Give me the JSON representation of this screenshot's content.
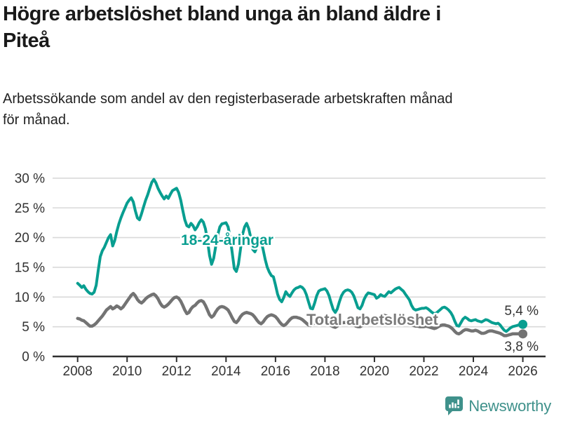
{
  "title": {
    "line1": "Högre arbetslöshet bland unga än bland äldre i",
    "line2": "Piteå"
  },
  "subtitle": {
    "line1": "Arbetssökande som andel av den registerbaserade arbetskraften månad",
    "line2": "för månad."
  },
  "colors": {
    "youth": "#089e90",
    "total": "#737373",
    "axis": "#2f2f2f",
    "grid": "#d9d9d9",
    "tick_label": "#333333",
    "value_label": "#333333",
    "brand": "#3f918b",
    "background": "#ffffff"
  },
  "chart_data": {
    "type": "line",
    "title": "Högre arbetslöshet bland unga än bland äldre i Piteå",
    "xlabel": "",
    "ylabel": "Arbetssökande som andel av den registerbaserade arbetskraften",
    "unit": "%",
    "x_start": 2008,
    "points_per_year": 12,
    "x_ticks": [
      2008,
      2010,
      2012,
      2014,
      2016,
      2018,
      2020,
      2022,
      2024,
      2026
    ],
    "y_ticks": [
      0,
      5,
      10,
      15,
      20,
      25,
      30
    ],
    "y_tick_labels": [
      "0 %",
      "5 %",
      "10 %",
      "15 %",
      "20 %",
      "25 %",
      "30 %"
    ],
    "ylim": [
      0,
      30
    ],
    "grid": true,
    "legend_position": "inline-labels",
    "series": [
      {
        "name": "18-24-åringar",
        "label": "18-24-åringar",
        "color": "#089e90",
        "end_label": "5,4 %",
        "values": [
          12.3,
          12.0,
          11.6,
          11.9,
          11.3,
          10.9,
          10.6,
          10.5,
          10.8,
          12.0,
          14.5,
          16.8,
          17.8,
          18.4,
          19.2,
          20.0,
          20.5,
          18.6,
          19.5,
          21.0,
          22.3,
          23.3,
          24.2,
          25.0,
          25.8,
          26.3,
          26.7,
          26.0,
          24.5,
          23.3,
          23.0,
          24.0,
          25.2,
          26.3,
          27.2,
          28.3,
          29.3,
          29.8,
          29.2,
          28.3,
          27.6,
          27.0,
          26.5,
          27.0,
          26.6,
          27.3,
          27.9,
          28.1,
          28.3,
          27.6,
          26.3,
          24.6,
          23.0,
          22.0,
          21.8,
          22.4,
          22.0,
          21.3,
          21.8,
          22.5,
          23.0,
          22.6,
          21.5,
          19.5,
          17.0,
          15.5,
          16.5,
          18.5,
          20.5,
          21.8,
          22.3,
          22.4,
          22.5,
          21.8,
          20.0,
          17.5,
          14.8,
          14.3,
          15.5,
          18.0,
          20.5,
          21.8,
          22.4,
          21.5,
          20.0,
          18.0,
          17.6,
          18.4,
          19.2,
          19.4,
          18.0,
          16.3,
          15.0,
          14.2,
          13.6,
          13.4,
          12.0,
          10.5,
          9.6,
          9.2,
          9.9,
          10.9,
          10.4,
          10.1,
          10.7,
          11.2,
          11.5,
          11.6,
          11.8,
          11.6,
          11.2,
          10.4,
          9.2,
          8.1,
          8.0,
          9.0,
          10.2,
          11.0,
          11.2,
          11.3,
          11.4,
          11.0,
          10.2,
          9.0,
          7.9,
          7.4,
          8.0,
          9.2,
          10.2,
          10.8,
          11.1,
          11.2,
          11.1,
          10.8,
          10.2,
          9.2,
          8.2,
          8.0,
          8.6,
          9.6,
          10.3,
          10.7,
          10.6,
          10.5,
          10.4,
          9.8,
          10.0,
          10.4,
          10.2,
          10.1,
          10.5,
          10.9,
          10.7,
          11.0,
          11.3,
          11.5,
          11.6,
          11.3,
          11.0,
          10.5,
          10.0,
          9.5,
          8.6,
          8.0,
          7.8,
          7.9,
          8.0,
          8.1,
          8.1,
          8.2,
          8.0,
          7.7,
          7.4,
          7.2,
          7.3,
          7.6,
          7.9,
          8.2,
          8.3,
          8.1,
          7.8,
          7.4,
          6.8,
          5.9,
          5.2,
          5.1,
          5.7,
          6.3,
          6.6,
          6.4,
          6.1,
          6.0,
          6.1,
          6.2,
          6.0,
          5.9,
          5.8,
          6.0,
          6.2,
          6.1,
          5.9,
          5.7,
          5.6,
          5.5,
          5.6,
          5.3,
          4.8,
          4.4,
          4.2,
          4.5,
          4.8,
          5.0,
          5.1,
          5.2,
          5.3,
          5.4,
          5.4
        ]
      },
      {
        "name": "Total arbetslöshet",
        "label": "Total arbetslöshet",
        "color": "#737373",
        "end_label": "3,8 %",
        "values": [
          6.4,
          6.3,
          6.1,
          6.0,
          5.7,
          5.4,
          5.1,
          5.1,
          5.3,
          5.6,
          6.0,
          6.4,
          6.8,
          7.3,
          7.8,
          8.1,
          8.4,
          8.0,
          8.2,
          8.5,
          8.3,
          8.0,
          8.3,
          8.8,
          9.3,
          9.8,
          10.3,
          10.6,
          10.2,
          9.6,
          9.2,
          9.0,
          9.3,
          9.7,
          10.0,
          10.2,
          10.4,
          10.5,
          10.2,
          9.7,
          9.0,
          8.5,
          8.3,
          8.5,
          8.8,
          9.2,
          9.6,
          9.9,
          10.0,
          9.8,
          9.3,
          8.6,
          7.8,
          7.2,
          7.4,
          8.0,
          8.4,
          8.6,
          9.0,
          9.3,
          9.4,
          9.2,
          8.6,
          7.8,
          7.0,
          6.6,
          6.9,
          7.5,
          8.0,
          8.3,
          8.4,
          8.3,
          8.1,
          7.8,
          7.2,
          6.5,
          5.9,
          5.7,
          6.1,
          6.7,
          7.1,
          7.3,
          7.4,
          7.3,
          7.2,
          7.0,
          6.6,
          6.1,
          5.7,
          5.5,
          5.8,
          6.3,
          6.7,
          6.9,
          7.0,
          6.9,
          6.7,
          6.3,
          5.8,
          5.4,
          5.2,
          5.4,
          5.8,
          6.2,
          6.5,
          6.6,
          6.6,
          6.5,
          6.4,
          6.2,
          5.9,
          5.6,
          5.3,
          5.2,
          5.4,
          5.7,
          6.0,
          6.1,
          6.2,
          6.1,
          6.0,
          5.8,
          5.5,
          5.2,
          5.0,
          4.9,
          5.1,
          5.4,
          5.6,
          5.7,
          5.7,
          5.6,
          5.6,
          5.5,
          5.3,
          5.1,
          5.0,
          5.0,
          5.2,
          5.5,
          5.7,
          5.8,
          5.9,
          6.0,
          6.1,
          6.2,
          6.5,
          6.8,
          7.0,
          6.9,
          6.8,
          6.7,
          6.6,
          6.5,
          6.4,
          6.3,
          6.3,
          6.2,
          6.0,
          5.8,
          5.6,
          5.4,
          5.3,
          5.2,
          5.1,
          5.1,
          5.0,
          5.0,
          5.0,
          5.1,
          5.0,
          4.9,
          4.8,
          4.7,
          4.8,
          5.0,
          5.2,
          5.3,
          5.3,
          5.2,
          5.1,
          4.9,
          4.6,
          4.2,
          3.9,
          3.8,
          4.0,
          4.3,
          4.5,
          4.5,
          4.4,
          4.3,
          4.3,
          4.4,
          4.3,
          4.1,
          3.9,
          3.9,
          4.0,
          4.2,
          4.3,
          4.3,
          4.2,
          4.1,
          4.0,
          3.9,
          3.7,
          3.5,
          3.5,
          3.6,
          3.7,
          3.8,
          3.8,
          3.8,
          3.8,
          3.8,
          3.8
        ]
      }
    ]
  },
  "footer": {
    "brand": "Newsworthy"
  }
}
